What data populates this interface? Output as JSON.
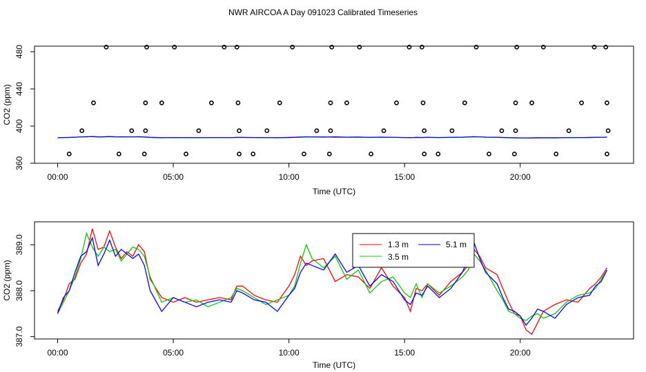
{
  "title": "NWR AIRCOA A  Day 091023  Calibrated Timeseries",
  "colors": {
    "h13": "#ff0000",
    "h35": "#00cc00",
    "h51": "#0000ff",
    "points": "#000000"
  },
  "chart_data": [
    {
      "type": "scatter",
      "xlabel": "Time (UTC)",
      "ylabel": "CO2 (ppm)",
      "xlim": [
        -1,
        24.9
      ],
      "ylim": [
        360,
        486
      ],
      "xticks": [
        0,
        5,
        10,
        15,
        20
      ],
      "xtick_labels": [
        "00:00",
        "05:00",
        "10:00",
        "15:00",
        "20:00"
      ],
      "yticks": [
        360,
        400,
        440,
        480
      ],
      "ytick_labels": [
        "360",
        "400",
        "440",
        "480"
      ],
      "calibration_points": {
        "370": [
          0.5,
          2.65,
          3.75,
          5.55,
          7.85,
          8.45,
          10.65,
          11.75,
          13.55,
          15.85,
          16.45,
          18.65,
          19.75,
          21.55,
          23.75
        ],
        "395": [
          1.05,
          3.2,
          3.8,
          6.1,
          7.85,
          9.05,
          11.2,
          11.8,
          14.1,
          15.85,
          17.05,
          19.2,
          19.8,
          22.1,
          23.8
        ],
        "425": [
          1.55,
          3.8,
          4.5,
          6.65,
          7.8,
          9.6,
          11.8,
          12.5,
          14.65,
          15.8,
          17.6,
          19.8,
          20.5,
          22.65,
          23.75
        ],
        "485": [
          2.1,
          3.85,
          5.05,
          7.2,
          7.75,
          10.15,
          11.85,
          13.05,
          15.2,
          15.75,
          18.1,
          19.85,
          21.0,
          23.2,
          23.7
        ]
      },
      "ambient_level": 387.8
    },
    {
      "type": "line",
      "xlabel": "Time (UTC)",
      "ylabel": "CO2 (ppm)",
      "xlim": [
        -1,
        24.9
      ],
      "ylim": [
        386.95,
        389.5
      ],
      "xticks": [
        0,
        5,
        10,
        15,
        20
      ],
      "xtick_labels": [
        "00:00",
        "05:00",
        "10:00",
        "15:00",
        "20:00"
      ],
      "yticks": [
        387.0,
        388.0,
        389.0
      ],
      "ytick_labels": [
        "387.0",
        "388.0",
        "389.0"
      ],
      "legend": {
        "position": "top-right-center",
        "entries": [
          "1.3 m",
          "3.5 m",
          "5.1 m"
        ]
      },
      "x": [
        0,
        0.25,
        0.5,
        0.75,
        1.0,
        1.25,
        1.5,
        1.75,
        2.0,
        2.25,
        2.5,
        2.75,
        3.0,
        3.25,
        3.5,
        3.75,
        4.0,
        4.5,
        5.0,
        5.5,
        6.0,
        6.5,
        7.0,
        7.5,
        7.75,
        8.0,
        8.5,
        9.0,
        9.5,
        10.0,
        10.25,
        10.5,
        10.75,
        11.0,
        11.5,
        12.0,
        12.5,
        13.0,
        13.5,
        14.0,
        14.5,
        15.0,
        15.25,
        15.5,
        15.75,
        16.0,
        16.5,
        17.0,
        17.5,
        17.75,
        18.0,
        18.25,
        18.5,
        19.0,
        19.25,
        19.5,
        19.75,
        20.0,
        20.25,
        20.5,
        20.75,
        21.0,
        21.5,
        22.0,
        22.5,
        23.0,
        23.25,
        23.5,
        23.75
      ],
      "series": [
        {
          "name": "1.3 m",
          "values": [
            387.55,
            387.8,
            388.15,
            388.25,
            388.6,
            388.8,
            389.35,
            388.9,
            388.95,
            389.3,
            388.95,
            388.7,
            388.85,
            388.75,
            389.0,
            388.85,
            388.25,
            387.85,
            387.75,
            387.85,
            387.75,
            387.8,
            387.85,
            387.8,
            388.1,
            388.1,
            387.9,
            387.8,
            387.75,
            388.1,
            388.35,
            388.75,
            388.55,
            388.65,
            388.7,
            388.2,
            388.35,
            388.3,
            388.05,
            388.5,
            388.1,
            387.85,
            387.55,
            388.05,
            388.0,
            388.15,
            387.9,
            388.2,
            388.4,
            388.55,
            388.9,
            388.75,
            388.5,
            388.35,
            388.05,
            387.75,
            387.5,
            387.45,
            387.15,
            387.05,
            387.3,
            387.55,
            387.7,
            387.8,
            387.75,
            388.05,
            388.15,
            388.3,
            388.5
          ]
        },
        {
          "name": "3.5 m",
          "values": [
            387.5,
            387.75,
            388.0,
            388.3,
            388.7,
            389.25,
            388.95,
            388.75,
            388.95,
            388.85,
            388.9,
            388.65,
            388.8,
            388.95,
            388.9,
            388.75,
            388.3,
            387.75,
            387.85,
            387.75,
            387.8,
            387.65,
            387.75,
            387.85,
            388.05,
            388.0,
            387.85,
            387.7,
            387.8,
            387.9,
            388.1,
            388.6,
            389.0,
            388.7,
            388.5,
            388.75,
            388.25,
            388.45,
            387.95,
            388.2,
            388.3,
            387.95,
            387.85,
            388.15,
            387.85,
            388.15,
            387.95,
            388.1,
            388.3,
            388.45,
            388.8,
            388.65,
            388.45,
            388.0,
            387.8,
            387.55,
            387.5,
            387.4,
            387.35,
            387.45,
            387.5,
            387.4,
            387.5,
            387.75,
            387.9,
            387.95,
            388.05,
            388.25,
            388.45
          ]
        },
        {
          "name": "5.1 m",
          "values": [
            387.5,
            387.85,
            388.0,
            388.4,
            388.75,
            388.85,
            389.15,
            388.55,
            388.8,
            389.1,
            388.75,
            388.9,
            388.8,
            388.7,
            388.8,
            388.55,
            388.0,
            387.55,
            387.85,
            387.75,
            387.65,
            387.75,
            387.8,
            387.75,
            388.0,
            387.95,
            387.8,
            387.75,
            387.55,
            387.9,
            388.05,
            388.4,
            388.6,
            388.55,
            388.45,
            388.8,
            388.4,
            388.55,
            388.1,
            388.35,
            388.2,
            387.8,
            387.7,
            387.95,
            387.9,
            388.1,
            387.85,
            388.05,
            388.4,
            388.7,
            389.05,
            388.7,
            388.4,
            388.15,
            387.85,
            387.6,
            387.55,
            387.45,
            387.25,
            387.4,
            387.6,
            387.55,
            387.4,
            387.7,
            387.85,
            387.9,
            388.1,
            388.2,
            388.45
          ]
        }
      ]
    }
  ]
}
